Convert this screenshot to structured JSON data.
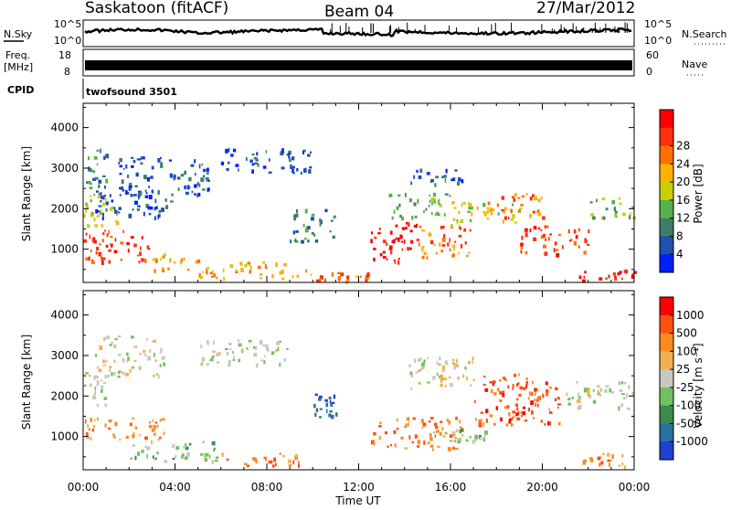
{
  "header": {
    "station": "Saskatoon (fitACF)",
    "beam": "Beam 04",
    "date": "27/Mar/2012"
  },
  "strip_noise": {
    "left_label": "N.Sky",
    "right_label": "N.Search",
    "ticks_left": [
      "10^5",
      "10^0"
    ],
    "ticks_right": [
      "10^5",
      "10^0"
    ]
  },
  "strip_freq": {
    "left_label_1": "Freq.",
    "left_label_2": "[MHz]",
    "ticks_left": [
      "18",
      "8"
    ],
    "ticks_right": [
      "60",
      "0"
    ],
    "right_label": "Nave"
  },
  "cpid": {
    "label": "CPID",
    "value": "twofsound 3501"
  },
  "chart_data": [
    {
      "type": "heatmap",
      "name": "power",
      "ylabel": "Slant Range [km]",
      "xlabel": "Time UT",
      "x_ticks": [
        "00:00",
        "04:00",
        "08:00",
        "12:00",
        "16:00",
        "20:00",
        "00:00"
      ],
      "y_ticks": [
        1000,
        2000,
        3000,
        4000
      ],
      "ylim": [
        180,
        4600
      ],
      "xlim_hours": [
        0,
        24
      ],
      "colorbar": {
        "label": "Power [dB]",
        "ticks": [
          "4",
          "8",
          "12",
          "16",
          "20",
          "24",
          "28"
        ],
        "colors": [
          "#0020ff",
          "#2050b0",
          "#3d7f66",
          "#58b04a",
          "#c8d000",
          "#ffb000",
          "#ff7000",
          "#ff3010",
          "#ff0000"
        ]
      },
      "regions": [
        {
          "t0": 0.0,
          "t1": 3.0,
          "r0": 700,
          "r1": 1500,
          "level": 7
        },
        {
          "t0": 0.0,
          "t1": 1.5,
          "r0": 1500,
          "r1": 2400,
          "level": 4
        },
        {
          "t0": 0.0,
          "t1": 1.0,
          "r0": 2400,
          "r1": 3500,
          "level": 2
        },
        {
          "t0": 0.5,
          "t1": 4.0,
          "r0": 1800,
          "r1": 2500,
          "level": 1
        },
        {
          "t0": 1.5,
          "t1": 5.5,
          "r0": 2300,
          "r1": 3300,
          "level": 1
        },
        {
          "t0": 3.0,
          "t1": 5.0,
          "r0": 500,
          "r1": 900,
          "level": 5
        },
        {
          "t0": 5.0,
          "t1": 10.0,
          "r0": 300,
          "r1": 700,
          "level": 5
        },
        {
          "t0": 6.0,
          "t1": 10.0,
          "r0": 2900,
          "r1": 3500,
          "level": 1
        },
        {
          "t0": 9.0,
          "t1": 11.0,
          "r0": 1200,
          "r1": 2000,
          "level": 2
        },
        {
          "t0": 10.0,
          "t1": 12.5,
          "r0": 250,
          "r1": 450,
          "level": 6
        },
        {
          "t0": 12.5,
          "t1": 14.5,
          "r0": 700,
          "r1": 1700,
          "level": 8
        },
        {
          "t0": 14.5,
          "t1": 17.0,
          "r0": 800,
          "r1": 1600,
          "level": 6
        },
        {
          "t0": 13.0,
          "t1": 16.0,
          "r0": 1800,
          "r1": 2400,
          "level": 3
        },
        {
          "t0": 14.0,
          "t1": 16.5,
          "r0": 2600,
          "r1": 3000,
          "level": 1
        },
        {
          "t0": 16.0,
          "t1": 19.0,
          "r0": 1600,
          "r1": 2200,
          "level": 4
        },
        {
          "t0": 17.5,
          "t1": 20.0,
          "r0": 1800,
          "r1": 2400,
          "level": 6
        },
        {
          "t0": 19.0,
          "t1": 22.0,
          "r0": 900,
          "r1": 1600,
          "level": 7
        },
        {
          "t0": 21.5,
          "t1": 24.0,
          "r0": 250,
          "r1": 500,
          "level": 8
        },
        {
          "t0": 22.0,
          "t1": 24.0,
          "r0": 1800,
          "r1": 2300,
          "level": 3
        }
      ]
    },
    {
      "type": "heatmap",
      "name": "velocity",
      "ylabel": "Slant Range [km]",
      "xlabel": "Time UT",
      "x_ticks": [
        "00:00",
        "04:00",
        "08:00",
        "12:00",
        "16:00",
        "20:00",
        "00:00"
      ],
      "y_ticks": [
        1000,
        2000,
        3000,
        4000
      ],
      "ylim": [
        180,
        4600
      ],
      "xlim_hours": [
        0,
        24
      ],
      "colorbar": {
        "label": "Velocity [m s⁻¹]",
        "ticks": [
          "1000",
          "500",
          "100",
          "25",
          "-25",
          "-100",
          "-500",
          "-1000"
        ],
        "colors": [
          "#2040d0",
          "#2a70a0",
          "#3c8a50",
          "#70c060",
          "#c8c8c0",
          "#f2b050",
          "#ff8a20",
          "#ff5010",
          "#ff0000"
        ]
      },
      "regions": [
        {
          "t0": 0.0,
          "t1": 3.5,
          "r0": 900,
          "r1": 1500,
          "level": 6
        },
        {
          "t0": 0.0,
          "t1": 1.0,
          "r0": 1800,
          "r1": 2600,
          "level": 4
        },
        {
          "t0": 0.5,
          "t1": 3.5,
          "r0": 2500,
          "r1": 3500,
          "level": 4
        },
        {
          "t0": 2.0,
          "t1": 6.0,
          "r0": 400,
          "r1": 900,
          "level": 3
        },
        {
          "t0": 5.0,
          "t1": 9.0,
          "r0": 2800,
          "r1": 3400,
          "level": 4
        },
        {
          "t0": 6.0,
          "t1": 10.0,
          "r0": 300,
          "r1": 600,
          "level": 6
        },
        {
          "t0": 10.0,
          "t1": 11.0,
          "r0": 1500,
          "r1": 2100,
          "level": 1
        },
        {
          "t0": 12.5,
          "t1": 16.5,
          "r0": 700,
          "r1": 1500,
          "level": 6
        },
        {
          "t0": 14.0,
          "t1": 17.0,
          "r0": 2200,
          "r1": 3000,
          "level": 4
        },
        {
          "t0": 17.0,
          "t1": 21.0,
          "r0": 1300,
          "r1": 2600,
          "level": 7
        },
        {
          "t0": 15.0,
          "t1": 17.5,
          "r0": 900,
          "r1": 1200,
          "level": 3
        },
        {
          "t0": 21.0,
          "t1": 24.0,
          "r0": 1700,
          "r1": 2400,
          "level": 4
        },
        {
          "t0": 21.5,
          "t1": 24.0,
          "r0": 250,
          "r1": 600,
          "level": 6
        }
      ]
    }
  ]
}
